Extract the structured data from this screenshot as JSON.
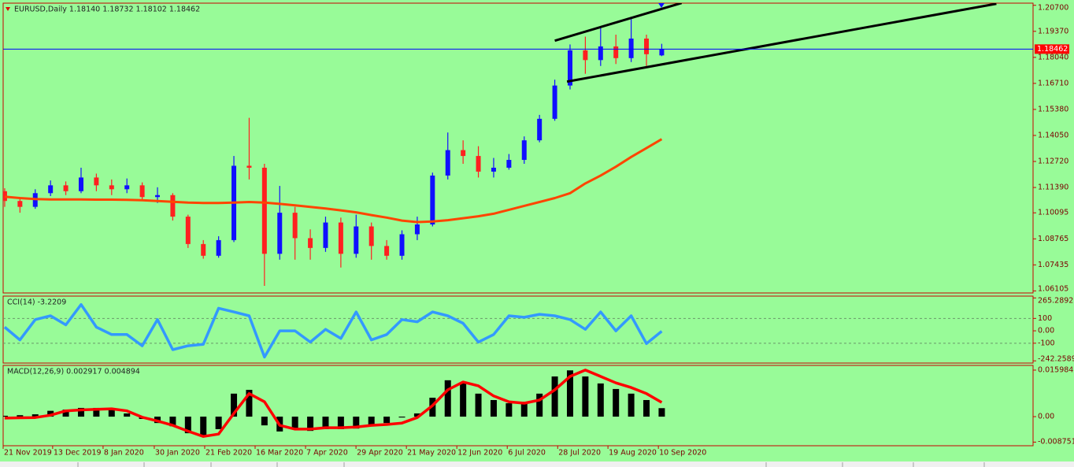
{
  "chart_data": [
    {
      "type": "candlestick",
      "title": "EURUSD,Daily  1.18140 1.18732 1.18102 1.18462",
      "x": [
        0,
        1,
        2,
        3,
        4,
        5,
        6,
        7,
        8,
        9,
        10,
        11,
        12,
        13,
        14,
        15,
        16,
        17,
        18,
        19,
        20,
        21,
        22,
        23,
        24,
        25,
        26,
        27,
        28,
        29,
        30,
        31,
        32,
        33,
        34,
        35,
        36,
        37,
        38,
        39,
        40,
        41,
        42,
        43
      ],
      "open": [
        1.112,
        1.107,
        1.104,
        1.111,
        1.115,
        1.112,
        1.119,
        1.115,
        1.113,
        1.115,
        1.109,
        1.11,
        1.099,
        1.085,
        1.079,
        1.087,
        1.125,
        1.124,
        1.08,
        1.101,
        1.088,
        1.083,
        1.096,
        1.08,
        1.094,
        1.084,
        1.079,
        1.09,
        1.095,
        1.12,
        1.133,
        1.13,
        1.122,
        1.124,
        1.128,
        1.138,
        1.149,
        1.166,
        1.184,
        1.179,
        1.186,
        1.18,
        1.19,
        1.1814
      ],
      "high": [
        1.1135,
        1.109,
        1.113,
        1.1175,
        1.117,
        1.124,
        1.121,
        1.118,
        1.1185,
        1.1165,
        1.114,
        1.111,
        1.1,
        1.087,
        1.089,
        1.13,
        1.1495,
        1.126,
        1.1147,
        1.104,
        1.0925,
        1.099,
        1.0985,
        1.1,
        1.096,
        1.087,
        1.092,
        1.099,
        1.1215,
        1.142,
        1.138,
        1.135,
        1.129,
        1.131,
        1.14,
        1.151,
        1.169,
        1.187,
        1.191,
        1.196,
        1.192,
        1.2011,
        1.192,
        1.18732
      ],
      "low": [
        1.104,
        1.101,
        1.103,
        1.1095,
        1.11,
        1.111,
        1.112,
        1.11,
        1.111,
        1.107,
        1.106,
        1.097,
        1.083,
        1.0775,
        1.078,
        1.086,
        1.118,
        1.0636,
        1.077,
        1.077,
        1.077,
        1.081,
        1.073,
        1.078,
        1.077,
        1.077,
        1.077,
        1.087,
        1.094,
        1.118,
        1.126,
        1.119,
        1.119,
        1.123,
        1.126,
        1.137,
        1.148,
        1.164,
        1.172,
        1.176,
        1.177,
        1.178,
        1.176,
        1.18102
      ],
      "close": [
        1.107,
        1.104,
        1.111,
        1.115,
        1.112,
        1.119,
        1.115,
        1.113,
        1.115,
        1.109,
        1.11,
        1.099,
        1.085,
        1.079,
        1.087,
        1.125,
        1.124,
        1.08,
        1.101,
        1.088,
        1.083,
        1.096,
        1.08,
        1.094,
        1.084,
        1.079,
        1.09,
        1.095,
        1.12,
        1.133,
        1.13,
        1.122,
        1.124,
        1.128,
        1.138,
        1.149,
        1.166,
        1.184,
        1.179,
        1.186,
        1.18,
        1.19,
        1.182,
        1.18462
      ],
      "up_color": "#1010ff",
      "down_color": "#ff2020",
      "lines": [
        {
          "color": "#ff4500",
          "values": [
            1.1092,
            1.1085,
            1.108,
            1.1078,
            1.1078,
            1.1078,
            1.1077,
            1.1077,
            1.1076,
            1.1074,
            1.107,
            1.1066,
            1.1062,
            1.106,
            1.106,
            1.1062,
            1.1065,
            1.1062,
            1.1055,
            1.1048,
            1.104,
            1.1032,
            1.1022,
            1.1012,
            1.0998,
            1.0985,
            1.097,
            1.0962,
            1.0965,
            1.0972,
            1.0982,
            1.0992,
            1.1005,
            1.1025,
            1.1045,
            1.1065,
            1.1085,
            1.111,
            1.116,
            1.12,
            1.1245,
            1.1295,
            1.134,
            1.1386
          ]
        }
      ],
      "trendlines": [
        {
          "color": "#000000",
          "x": [
            36,
            44.3
          ],
          "y": [
            1.1889,
            1.2082
          ]
        },
        {
          "color": "#000000",
          "x": [
            36.8,
            64.9
          ],
          "y": [
            1.168,
            1.2078
          ]
        }
      ],
      "current_price": 1.18462,
      "current_price_color": "#0000ff",
      "xlim": [
        -0.1,
        67.3
      ],
      "ylim": [
        1.06,
        1.2081
      ],
      "yticks": [
        {
          "value": 1.207,
          "label": "1.20700"
        },
        {
          "value": 1.1937,
          "label": "1.19370"
        },
        {
          "value": 1.1804,
          "label": "1.18040"
        },
        {
          "value": 1.1671,
          "label": "1.16710"
        },
        {
          "value": 1.1538,
          "label": "1.15380"
        },
        {
          "value": 1.1405,
          "label": "1.14050"
        },
        {
          "value": 1.1272,
          "label": "1.12720"
        },
        {
          "value": 1.1139,
          "label": "1.11390"
        },
        1.10095,
        1.08765,
        1.07435,
        1.06105
      ]
    },
    {
      "type": "line",
      "title": "CCI(14) -3.2209",
      "x": [
        0,
        1,
        2,
        3,
        4,
        5,
        6,
        7,
        8,
        9,
        10,
        11,
        12,
        13,
        14,
        15,
        16,
        17,
        18,
        19,
        20,
        21,
        22,
        23,
        24,
        25,
        26,
        27,
        28,
        29,
        30,
        31,
        32,
        33,
        34,
        35,
        36,
        37,
        38,
        39,
        40,
        41,
        42,
        43
      ],
      "series": [
        {
          "color": "#3399ff",
          "values": [
            30,
            -73,
            91,
            121,
            48,
            212,
            30,
            -30,
            -30,
            -121,
            91,
            -152,
            -121,
            -109,
            182,
            152,
            121,
            -212,
            0,
            0,
            -91,
            12,
            -61,
            152,
            -73,
            -30,
            91,
            73,
            152,
            121,
            61,
            -91,
            -30,
            121,
            109,
            133,
            121,
            91,
            12,
            152,
            0,
            121,
            -103,
            -3.2209
          ]
        }
      ],
      "levels": [
        100,
        -100
      ],
      "xlim": [
        -0.1,
        67.3
      ],
      "ylim": [
        -260,
        280
      ],
      "yticks": [
        265.2892,
        100,
        {
          "value": 0,
          "label": "0.00"
        },
        -100,
        -242.2589
      ]
    },
    {
      "type": "combo",
      "title": "MACD(12,26,9) 0.002917 0.004894",
      "x": [
        0,
        1,
        2,
        3,
        4,
        5,
        6,
        7,
        8,
        9,
        10,
        11,
        12,
        13,
        14,
        15,
        16,
        17,
        18,
        19,
        20,
        21,
        22,
        23,
        24,
        25,
        26,
        27,
        28,
        29,
        30,
        31,
        32,
        33,
        34,
        35,
        36,
        37,
        38,
        39,
        40,
        41,
        42,
        43
      ],
      "series": [
        {
          "type": "bar",
          "color": "#000000",
          "values": [
            0.0003,
            0.0005,
            0.0008,
            0.002,
            0.0024,
            0.003,
            0.003,
            0.0027,
            0.0011,
            -0.0008,
            -0.0022,
            -0.0033,
            -0.0057,
            -0.0065,
            -0.0043,
            0.0079,
            0.0092,
            -0.003,
            -0.0051,
            -0.0043,
            -0.0049,
            -0.0043,
            -0.0043,
            -0.0041,
            -0.003,
            -0.0022,
            -0.0003,
            0.0011,
            0.0065,
            0.0125,
            0.0114,
            0.0079,
            0.0057,
            0.0046,
            0.0051,
            0.0079,
            0.0138,
            0.0159,
            0.0138,
            0.0114,
            0.0095,
            0.0079,
            0.0057,
            0.002917
          ]
        },
        {
          "type": "line",
          "color": "#ff0000",
          "values": [
            -0.0005,
            -0.0004,
            -0.0003,
            0.0005,
            0.002,
            0.0023,
            0.0025,
            0.0027,
            0.002,
            -0.0002,
            -0.0015,
            -0.003,
            -0.005,
            -0.0068,
            -0.006,
            0.0011,
            0.0079,
            0.0051,
            -0.003,
            -0.0043,
            -0.0043,
            -0.0038,
            -0.0038,
            -0.0036,
            -0.003,
            -0.0027,
            -0.0022,
            -0.0003,
            0.0038,
            0.0092,
            0.0119,
            0.0106,
            0.0071,
            0.0051,
            0.0046,
            0.0057,
            0.0092,
            0.0138,
            0.016,
            0.0138,
            0.0116,
            0.01,
            0.0079,
            0.004894
          ]
        }
      ],
      "xlim": [
        -0.1,
        67.3
      ],
      "ylim": [
        -0.01,
        0.0176
      ],
      "yticks": [
        0.015984,
        {
          "value": 0,
          "label": "0.00"
        },
        -0.008751
      ],
      "xticks": [
        {
          "value": -0.1,
          "label": "21 Nov 2019"
        },
        {
          "value": 3.14,
          "label": "13 Dec 2019"
        },
        {
          "value": 6.44,
          "label": "8 Jan 2020"
        },
        {
          "value": 9.79,
          "label": "30 Jan 2020"
        },
        {
          "value": 13.09,
          "label": "21 Feb 2020"
        },
        {
          "value": 16.39,
          "label": "16 Mar 2020"
        },
        {
          "value": 19.69,
          "label": "7 Apr 2020"
        },
        {
          "value": 22.99,
          "label": "29 Apr 2020"
        },
        {
          "value": 26.29,
          "label": "21 May 2020"
        },
        {
          "value": 29.59,
          "label": "12 Jun 2020"
        },
        {
          "value": 32.89,
          "label": "6 Jul 2020"
        },
        {
          "value": 36.19,
          "label": "28 Jul 2020"
        },
        {
          "value": 39.48,
          "label": "19 Aug 2020"
        },
        {
          "value": 42.78,
          "label": "10 Sep 2020"
        }
      ]
    }
  ]
}
